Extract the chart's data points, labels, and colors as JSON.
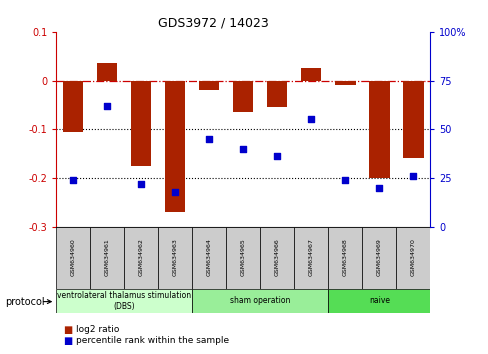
{
  "title": "GDS3972 / 14023",
  "samples": [
    "GSM634960",
    "GSM634961",
    "GSM634962",
    "GSM634963",
    "GSM634964",
    "GSM634965",
    "GSM634966",
    "GSM634967",
    "GSM634968",
    "GSM634969",
    "GSM634970"
  ],
  "log2_ratio": [
    -0.105,
    0.035,
    -0.175,
    -0.27,
    -0.02,
    -0.065,
    -0.055,
    0.025,
    -0.01,
    -0.2,
    -0.16
  ],
  "percentile_rank": [
    24,
    62,
    22,
    18,
    45,
    40,
    36,
    55,
    24,
    20,
    26
  ],
  "groups": [
    {
      "label": "ventrolateral thalamus stimulation\n(DBS)",
      "start": 0,
      "end": 3,
      "color": "#ccffcc"
    },
    {
      "label": "sham operation",
      "start": 4,
      "end": 7,
      "color": "#99ee99"
    },
    {
      "label": "naive",
      "start": 8,
      "end": 10,
      "color": "#55dd55"
    }
  ],
  "ylim_left": [
    -0.3,
    0.1
  ],
  "ylim_right": [
    0,
    100
  ],
  "bar_color": "#aa2200",
  "dot_color": "#0000cc",
  "hline_color": "#cc0000",
  "dotted_line_color": "#000000",
  "dotted_line_values": [
    -0.1,
    -0.2
  ],
  "right_ticks": [
    0,
    25,
    50,
    75,
    100
  ],
  "right_tick_labels": [
    "0",
    "25",
    "50",
    "75",
    "100%"
  ],
  "protocol_label": "protocol",
  "legend_items": [
    {
      "color": "#aa2200",
      "label": "log2 ratio"
    },
    {
      "color": "#0000cc",
      "label": "percentile rank within the sample"
    }
  ],
  "figsize": [
    4.89,
    3.54
  ],
  "dpi": 100
}
